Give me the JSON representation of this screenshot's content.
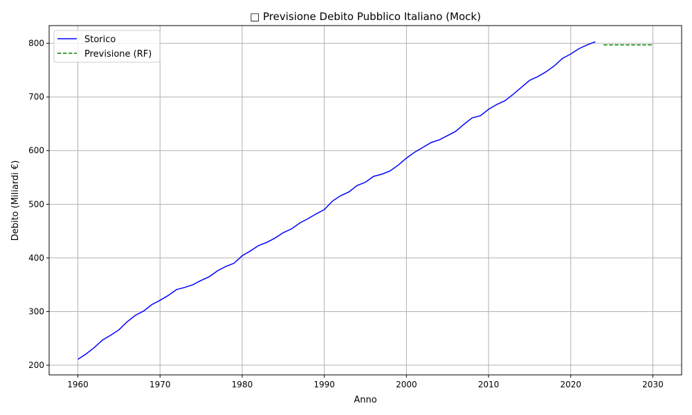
{
  "chart_data": {
    "type": "line",
    "title": "□ Previsione Debito Pubblico Italiano (Mock)",
    "xlabel": "Anno",
    "ylabel": "Debito (Miliardi €)",
    "xlim": [
      1956.5,
      2033.5
    ],
    "ylim": [
      182,
      833
    ],
    "xticks": [
      1960,
      1970,
      1980,
      1990,
      2000,
      2010,
      2020,
      2030
    ],
    "yticks": [
      200,
      300,
      400,
      500,
      600,
      700,
      800
    ],
    "grid": true,
    "legend_position": "top-left",
    "series": [
      {
        "name": "Storico",
        "color": "#0000ff",
        "style": "solid",
        "x": [
          1960,
          1961,
          1962,
          1963,
          1964,
          1965,
          1966,
          1967,
          1968,
          1969,
          1970,
          1971,
          1972,
          1973,
          1974,
          1975,
          1976,
          1977,
          1978,
          1979,
          1980,
          1981,
          1982,
          1983,
          1984,
          1985,
          1986,
          1987,
          1988,
          1989,
          1990,
          1991,
          1992,
          1993,
          1994,
          1995,
          1996,
          1997,
          1998,
          1999,
          2000,
          2001,
          2002,
          2003,
          2004,
          2005,
          2006,
          2007,
          2008,
          2009,
          2010,
          2011,
          2012,
          2013,
          2014,
          2015,
          2016,
          2017,
          2018,
          2019,
          2020,
          2021,
          2022,
          2023
        ],
        "y": [
          211,
          221,
          233,
          247,
          256,
          266,
          281,
          293,
          301,
          313,
          321,
          330,
          341,
          345,
          350,
          358,
          365,
          376,
          384,
          390,
          404,
          413,
          423,
          429,
          437,
          447,
          454,
          465,
          473,
          482,
          490,
          506,
          516,
          523,
          535,
          541,
          552,
          556,
          562,
          573,
          586,
          597,
          606,
          615,
          620,
          628,
          636,
          649,
          661,
          665,
          677,
          686,
          693,
          705,
          718,
          731,
          738,
          747,
          758,
          772,
          780,
          790,
          797,
          803
        ]
      },
      {
        "name": "Previsione (RF)",
        "color": "#008000",
        "style": "dashed",
        "x": [
          2024,
          2025,
          2026,
          2027,
          2028,
          2029,
          2030
        ],
        "y": [
          797,
          797,
          797,
          797,
          797,
          797,
          797
        ]
      }
    ]
  }
}
